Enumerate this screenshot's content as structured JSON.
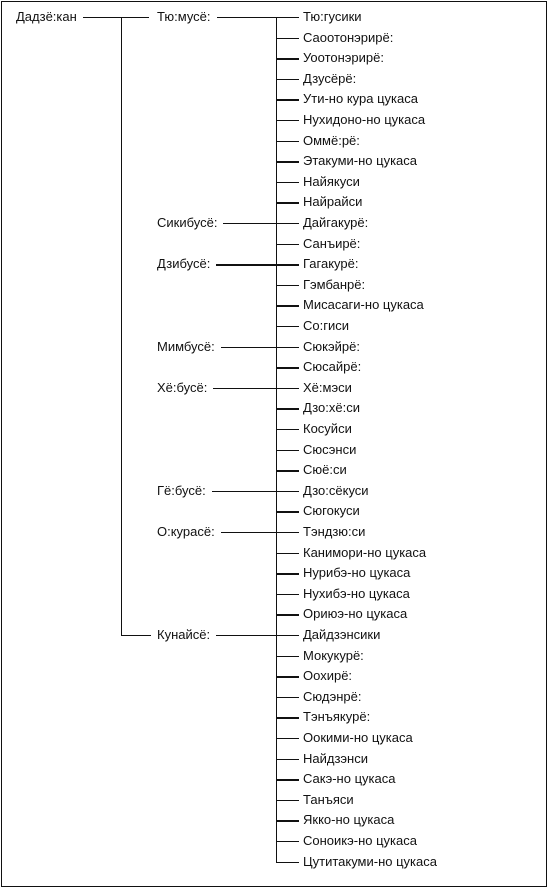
{
  "root": "Дадзё:кан",
  "branches": [
    {
      "label": "Тю:мусё:",
      "leaves": [
        "Тю:гусики",
        "Саоотонэрирё:",
        "Уоотонэрирё:",
        "Дзусёрё:",
        "Ути-но кура цукаса",
        "Нухидоно-но цукаса",
        "Оммё:рё:",
        "Этакуми-но цукаса",
        "Найякуси",
        "Найрайси"
      ]
    },
    {
      "label": "Сикибусё:",
      "leaves": [
        "Дайгакурё:",
        "Санъирё:"
      ]
    },
    {
      "label": "Дзибусё:",
      "leaves": [
        "Гагакурё:",
        "Гэмбанрё:",
        "Мисасаги-но цукаса",
        "Со:гиси"
      ]
    },
    {
      "label": "Мимбусё:",
      "leaves": [
        "Сюкэйрё:",
        "Сюсайрё:"
      ]
    },
    {
      "label": "Хё:бусё:",
      "leaves": [
        "Хё:мэси",
        "Дзо:хё:си",
        "Косуйси",
        "Сюсэнси",
        "Сюё:си"
      ]
    },
    {
      "label": "Гё:бусё:",
      "leaves": [
        "Дзо:сёкуси",
        "Сюгокуси"
      ]
    },
    {
      "label": "О:курасё:",
      "leaves": [
        "Тэндзю:си",
        "Канимори-но цукаса",
        "Нурибэ-но цукаса",
        "Нухибэ-но цукаса",
        "Ориюэ-но цукаса"
      ]
    },
    {
      "label": "Кунайсё:",
      "leaves": [
        "Дайдзэнсики",
        "Мокукурё:",
        "Оохирё:",
        "Сюдэнрё:",
        "Тэнъякурё:",
        "Оокими-но цукаса",
        "Найдзэнси",
        "Сакэ-но цукаса",
        "Танъяси",
        "Якко-но цукаса",
        "Соноикэ-но цукаса",
        "Цутитакуми-но цукаса"
      ]
    }
  ]
}
